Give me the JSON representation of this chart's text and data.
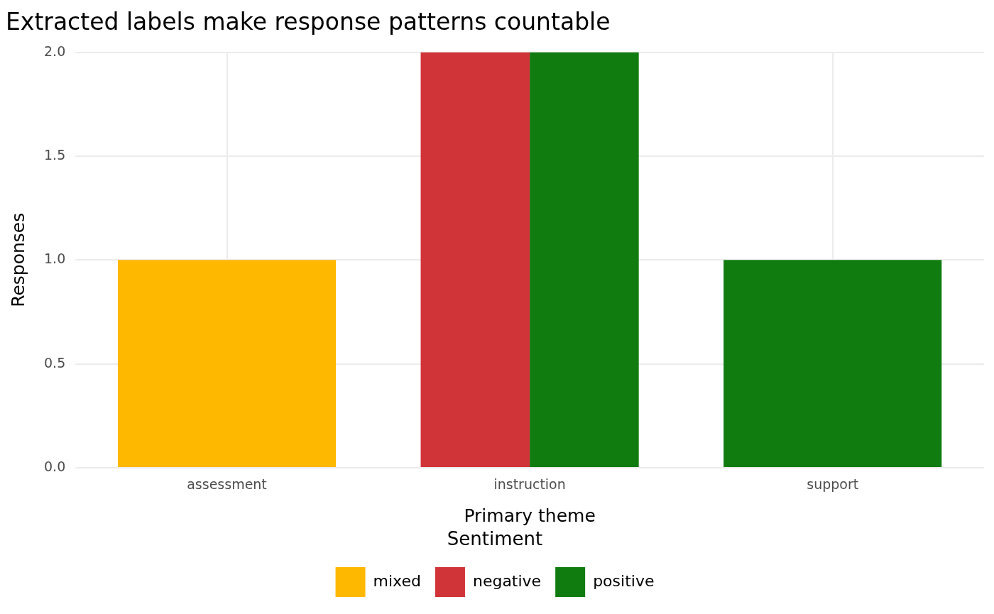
{
  "chart_data": {
    "type": "bar",
    "title": "Extracted labels make response patterns countable",
    "xlabel": "Primary theme",
    "ylabel": "Responses",
    "legend_title": "Sentiment",
    "categories": [
      "assessment",
      "instruction",
      "support"
    ],
    "series": [
      {
        "name": "mixed",
        "color": "#ffb800",
        "values": [
          1,
          null,
          null
        ]
      },
      {
        "name": "negative",
        "color": "#d13438",
        "values": [
          null,
          2,
          null
        ]
      },
      {
        "name": "positive",
        "color": "#107c10",
        "values": [
          null,
          2,
          1
        ]
      }
    ],
    "ylim": [
      0,
      2
    ],
    "yticks": [
      {
        "value": 0,
        "label": "0.0"
      },
      {
        "value": 0.5,
        "label": "0.5"
      },
      {
        "value": 1,
        "label": "1.0"
      },
      {
        "value": 1.5,
        "label": "1.5"
      },
      {
        "value": 2,
        "label": "2.0"
      }
    ],
    "grid": true,
    "legend": "bottom"
  }
}
